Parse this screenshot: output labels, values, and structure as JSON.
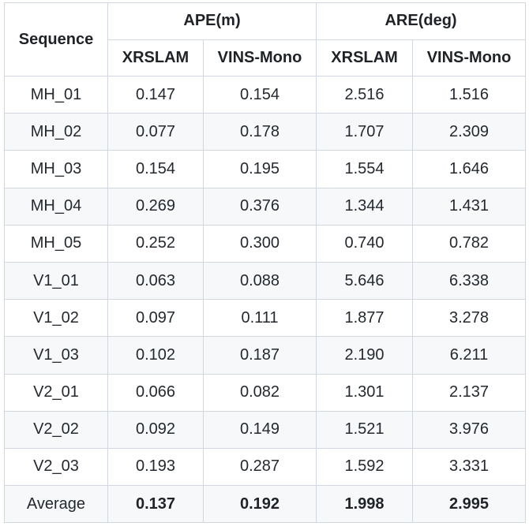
{
  "table": {
    "header": {
      "sequence": "Sequence",
      "ape": "APE(m)",
      "are": "ARE(deg)",
      "sub": [
        "XRSLAM",
        "VINS-Mono",
        "XRSLAM",
        "VINS-Mono"
      ]
    },
    "rows": [
      [
        "MH_01",
        "0.147",
        "0.154",
        "2.516",
        "1.516"
      ],
      [
        "MH_02",
        "0.077",
        "0.178",
        "1.707",
        "2.309"
      ],
      [
        "MH_03",
        "0.154",
        "0.195",
        "1.554",
        "1.646"
      ],
      [
        "MH_04",
        "0.269",
        "0.376",
        "1.344",
        "1.431"
      ],
      [
        "MH_05",
        "0.252",
        "0.300",
        "0.740",
        "0.782"
      ],
      [
        "V1_01",
        "0.063",
        "0.088",
        "5.646",
        "6.338"
      ],
      [
        "V1_02",
        "0.097",
        "0.111",
        "1.877",
        "3.278"
      ],
      [
        "V1_03",
        "0.102",
        "0.187",
        "2.190",
        "6.211"
      ],
      [
        "V2_01",
        "0.066",
        "0.082",
        "1.301",
        "2.137"
      ],
      [
        "V2_02",
        "0.092",
        "0.149",
        "1.521",
        "3.976"
      ],
      [
        "V2_03",
        "0.193",
        "0.287",
        "1.592",
        "3.331"
      ],
      [
        "Average",
        "0.137",
        "0.192",
        "1.998",
        "2.995"
      ]
    ]
  }
}
